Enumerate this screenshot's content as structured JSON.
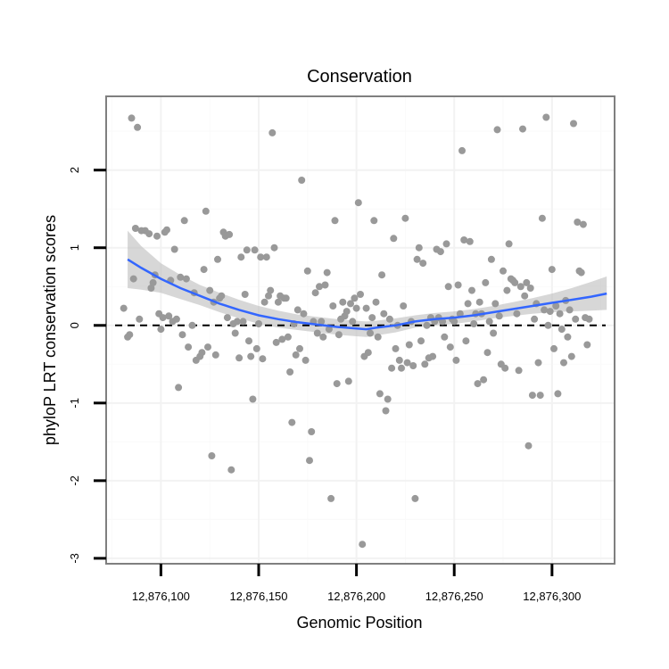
{
  "chart_data": {
    "type": "scatter",
    "title": "Conservation",
    "xlabel": "Genomic Position",
    "ylabel": "phyloP LRT conservation scores",
    "xlim": [
      12876072,
      12876332
    ],
    "ylim": [
      -3.07,
      2.95
    ],
    "x_ticks": [
      12876100,
      12876150,
      12876200,
      12876250,
      12876300
    ],
    "x_tick_labels": [
      "12,876,100",
      "12,876,150",
      "12,876,200",
      "12,876,250",
      "12,876,300"
    ],
    "y_ticks": [
      -3,
      -2,
      -1,
      0,
      1,
      2
    ],
    "y_tick_labels": [
      "-3",
      "-2",
      "-1",
      "0",
      "1",
      "2"
    ],
    "reference_line": 0,
    "colors": {
      "points": "#999999",
      "smooth_line": "#3366FF",
      "ribbon": "#BDBDBD",
      "panel_border": "#7F7F7F",
      "grid_major": "#F2F2F2",
      "grid_minor": "#FAFAFA"
    },
    "points": [
      [
        12876085,
        2.67
      ],
      [
        12876088,
        2.55
      ],
      [
        12876081,
        0.22
      ],
      [
        12876083,
        -0.15
      ],
      [
        12876084,
        -0.12
      ],
      [
        12876086,
        0.6
      ],
      [
        12876087,
        1.25
      ],
      [
        12876089,
        0.08
      ],
      [
        12876090,
        1.22
      ],
      [
        12876092,
        1.22
      ],
      [
        12876094,
        1.18
      ],
      [
        12876095,
        0.48
      ],
      [
        12876096,
        0.55
      ],
      [
        12876097,
        0.65
      ],
      [
        12876098,
        1.15
      ],
      [
        12876099,
        0.15
      ],
      [
        12876100,
        -0.05
      ],
      [
        12876101,
        0.1
      ],
      [
        12876102,
        1.2
      ],
      [
        12876103,
        1.23
      ],
      [
        12876104,
        0.12
      ],
      [
        12876105,
        0.58
      ],
      [
        12876106,
        0.05
      ],
      [
        12876107,
        0.98
      ],
      [
        12876108,
        0.08
      ],
      [
        12876109,
        -0.8
      ],
      [
        12876110,
        0.62
      ],
      [
        12876111,
        -0.12
      ],
      [
        12876112,
        1.35
      ],
      [
        12876113,
        0.6
      ],
      [
        12876114,
        -0.28
      ],
      [
        12876116,
        0.0
      ],
      [
        12876117,
        0.42
      ],
      [
        12876118,
        -0.45
      ],
      [
        12876120,
        -0.4
      ],
      [
        12876121,
        -0.35
      ],
      [
        12876122,
        0.72
      ],
      [
        12876123,
        1.47
      ],
      [
        12876124,
        -0.28
      ],
      [
        12876125,
        0.45
      ],
      [
        12876126,
        -1.68
      ],
      [
        12876127,
        0.3
      ],
      [
        12876128,
        -0.38
      ],
      [
        12876129,
        0.85
      ],
      [
        12876130,
        0.35
      ],
      [
        12876131,
        0.38
      ],
      [
        12876132,
        1.2
      ],
      [
        12876133,
        1.15
      ],
      [
        12876134,
        0.1
      ],
      [
        12876135,
        1.17
      ],
      [
        12876136,
        -1.86
      ],
      [
        12876137,
        0.02
      ],
      [
        12876138,
        -0.1
      ],
      [
        12876139,
        0.05
      ],
      [
        12876140,
        -0.42
      ],
      [
        12876141,
        0.88
      ],
      [
        12876142,
        0.05
      ],
      [
        12876143,
        0.4
      ],
      [
        12876144,
        0.97
      ],
      [
        12876145,
        -0.2
      ],
      [
        12876146,
        -0.4
      ],
      [
        12876147,
        -0.95
      ],
      [
        12876148,
        0.97
      ],
      [
        12876149,
        -0.3
      ],
      [
        12876150,
        0.02
      ],
      [
        12876151,
        0.88
      ],
      [
        12876152,
        -0.43
      ],
      [
        12876153,
        0.3
      ],
      [
        12876154,
        0.88
      ],
      [
        12876155,
        0.38
      ],
      [
        12876156,
        0.45
      ],
      [
        12876157,
        2.48
      ],
      [
        12876158,
        1.0
      ],
      [
        12876159,
        -0.22
      ],
      [
        12876160,
        0.3
      ],
      [
        12876161,
        0.38
      ],
      [
        12876162,
        -0.18
      ],
      [
        12876163,
        0.35
      ],
      [
        12876164,
        0.35
      ],
      [
        12876165,
        -0.15
      ],
      [
        12876166,
        -0.6
      ],
      [
        12876167,
        -1.25
      ],
      [
        12876168,
        0.02
      ],
      [
        12876169,
        -0.38
      ],
      [
        12876170,
        0.2
      ],
      [
        12876171,
        -0.3
      ],
      [
        12876172,
        1.87
      ],
      [
        12876173,
        0.15
      ],
      [
        12876174,
        -0.45
      ],
      [
        12876175,
        0.7
      ],
      [
        12876176,
        -1.74
      ],
      [
        12876177,
        -1.37
      ],
      [
        12876178,
        0.05
      ],
      [
        12876179,
        0.42
      ],
      [
        12876180,
        -0.1
      ],
      [
        12876181,
        0.5
      ],
      [
        12876182,
        0.05
      ],
      [
        12876183,
        -0.15
      ],
      [
        12876184,
        0.52
      ],
      [
        12876185,
        0.68
      ],
      [
        12876186,
        -0.05
      ],
      [
        12876187,
        -2.23
      ],
      [
        12876188,
        0.25
      ],
      [
        12876189,
        1.35
      ],
      [
        12876190,
        -0.75
      ],
      [
        12876191,
        -0.12
      ],
      [
        12876192,
        0.08
      ],
      [
        12876193,
        0.3
      ],
      [
        12876194,
        0.12
      ],
      [
        12876195,
        0.18
      ],
      [
        12876196,
        -0.72
      ],
      [
        12876197,
        0.28
      ],
      [
        12876198,
        0.05
      ],
      [
        12876199,
        0.35
      ],
      [
        12876200,
        0.22
      ],
      [
        12876201,
        1.58
      ],
      [
        12876202,
        0.4
      ],
      [
        12876203,
        -2.82
      ],
      [
        12876204,
        -0.4
      ],
      [
        12876205,
        0.22
      ],
      [
        12876206,
        -0.35
      ],
      [
        12876207,
        -0.1
      ],
      [
        12876208,
        0.1
      ],
      [
        12876209,
        1.35
      ],
      [
        12876210,
        0.3
      ],
      [
        12876211,
        -0.15
      ],
      [
        12876212,
        -0.88
      ],
      [
        12876213,
        0.65
      ],
      [
        12876214,
        0.15
      ],
      [
        12876215,
        -1.1
      ],
      [
        12876216,
        -0.95
      ],
      [
        12876217,
        0.08
      ],
      [
        12876218,
        -0.55
      ],
      [
        12876219,
        1.12
      ],
      [
        12876220,
        -0.3
      ],
      [
        12876221,
        0.0
      ],
      [
        12876222,
        -0.45
      ],
      [
        12876223,
        -0.55
      ],
      [
        12876224,
        0.25
      ],
      [
        12876225,
        1.38
      ],
      [
        12876226,
        -0.48
      ],
      [
        12876227,
        -0.25
      ],
      [
        12876228,
        0.05
      ],
      [
        12876229,
        -0.52
      ],
      [
        12876230,
        -2.23
      ],
      [
        12876231,
        0.85
      ],
      [
        12876232,
        1.0
      ],
      [
        12876233,
        -0.2
      ],
      [
        12876234,
        0.8
      ],
      [
        12876235,
        -0.5
      ],
      [
        12876236,
        0.0
      ],
      [
        12876237,
        -0.42
      ],
      [
        12876238,
        0.1
      ],
      [
        12876239,
        -0.4
      ],
      [
        12876240,
        0.05
      ],
      [
        12876241,
        0.98
      ],
      [
        12876242,
        0.1
      ],
      [
        12876243,
        0.95
      ],
      [
        12876244,
        0.05
      ],
      [
        12876245,
        -0.15
      ],
      [
        12876246,
        1.05
      ],
      [
        12876247,
        0.5
      ],
      [
        12876248,
        -0.28
      ],
      [
        12876249,
        0.08
      ],
      [
        12876250,
        0.05
      ],
      [
        12876251,
        -0.45
      ],
      [
        12876252,
        0.52
      ],
      [
        12876253,
        0.15
      ],
      [
        12876254,
        2.25
      ],
      [
        12876255,
        1.1
      ],
      [
        12876256,
        -0.2
      ],
      [
        12876257,
        0.28
      ],
      [
        12876258,
        1.08
      ],
      [
        12876259,
        0.45
      ],
      [
        12876260,
        0.02
      ],
      [
        12876261,
        0.15
      ],
      [
        12876262,
        -0.75
      ],
      [
        12876263,
        0.3
      ],
      [
        12876264,
        0.15
      ],
      [
        12876265,
        -0.7
      ],
      [
        12876266,
        0.55
      ],
      [
        12876267,
        -0.35
      ],
      [
        12876268,
        0.05
      ],
      [
        12876269,
        0.85
      ],
      [
        12876270,
        -0.1
      ],
      [
        12876271,
        0.28
      ],
      [
        12876272,
        2.52
      ],
      [
        12876273,
        0.12
      ],
      [
        12876274,
        -0.5
      ],
      [
        12876275,
        0.7
      ],
      [
        12876276,
        -0.55
      ],
      [
        12876277,
        0.45
      ],
      [
        12876278,
        1.05
      ],
      [
        12876279,
        0.6
      ],
      [
        12876280,
        0.58
      ],
      [
        12876281,
        0.55
      ],
      [
        12876282,
        0.15
      ],
      [
        12876283,
        -0.58
      ],
      [
        12876284,
        0.5
      ],
      [
        12876285,
        2.53
      ],
      [
        12876286,
        0.38
      ],
      [
        12876287,
        0.55
      ],
      [
        12876288,
        -1.55
      ],
      [
        12876289,
        0.48
      ],
      [
        12876290,
        -0.9
      ],
      [
        12876291,
        0.08
      ],
      [
        12876292,
        0.28
      ],
      [
        12876293,
        -0.48
      ],
      [
        12876294,
        -0.9
      ],
      [
        12876295,
        1.38
      ],
      [
        12876296,
        0.2
      ],
      [
        12876297,
        2.68
      ],
      [
        12876298,
        0.0
      ],
      [
        12876299,
        0.18
      ],
      [
        12876300,
        0.72
      ],
      [
        12876301,
        -0.3
      ],
      [
        12876302,
        0.25
      ],
      [
        12876303,
        -0.88
      ],
      [
        12876304,
        0.15
      ],
      [
        12876305,
        -0.05
      ],
      [
        12876306,
        -0.48
      ],
      [
        12876307,
        0.32
      ],
      [
        12876308,
        -0.15
      ],
      [
        12876309,
        0.2
      ],
      [
        12876310,
        -0.4
      ],
      [
        12876311,
        2.6
      ],
      [
        12876312,
        0.08
      ],
      [
        12876313,
        1.33
      ],
      [
        12876314,
        0.7
      ],
      [
        12876315,
        0.68
      ],
      [
        12876316,
        1.3
      ],
      [
        12876317,
        0.1
      ],
      [
        12876318,
        -0.25
      ],
      [
        12876319,
        0.08
      ]
    ],
    "smooth_curve": [
      [
        12876083,
        0.85
      ],
      [
        12876090,
        0.74
      ],
      [
        12876100,
        0.6
      ],
      [
        12876110,
        0.48
      ],
      [
        12876120,
        0.38
      ],
      [
        12876130,
        0.28
      ],
      [
        12876140,
        0.2
      ],
      [
        12876150,
        0.13
      ],
      [
        12876160,
        0.08
      ],
      [
        12876170,
        0.04
      ],
      [
        12876180,
        0.01
      ],
      [
        12876190,
        -0.02
      ],
      [
        12876200,
        -0.04
      ],
      [
        12876205,
        -0.05
      ],
      [
        12876210,
        -0.03
      ],
      [
        12876220,
        0.0
      ],
      [
        12876230,
        0.05
      ],
      [
        12876240,
        0.08
      ],
      [
        12876250,
        0.1
      ],
      [
        12876260,
        0.13
      ],
      [
        12876270,
        0.17
      ],
      [
        12876280,
        0.21
      ],
      [
        12876290,
        0.25
      ],
      [
        12876300,
        0.29
      ],
      [
        12876310,
        0.33
      ],
      [
        12876320,
        0.37
      ],
      [
        12876328,
        0.41
      ]
    ],
    "confidence_band": {
      "upper": [
        1.22,
        1.02,
        0.8,
        0.65,
        0.52,
        0.42,
        0.33,
        0.25,
        0.19,
        0.14,
        0.11,
        0.08,
        0.06,
        0.05,
        0.06,
        0.09,
        0.13,
        0.16,
        0.18,
        0.21,
        0.25,
        0.3,
        0.35,
        0.41,
        0.48,
        0.56,
        0.63
      ],
      "lower": [
        0.48,
        0.46,
        0.42,
        0.34,
        0.26,
        0.17,
        0.09,
        0.02,
        -0.03,
        -0.06,
        -0.09,
        -0.12,
        -0.14,
        -0.15,
        -0.13,
        -0.09,
        -0.03,
        0.0,
        0.02,
        0.05,
        0.09,
        0.12,
        0.15,
        0.17,
        0.18,
        0.19,
        0.2
      ]
    }
  }
}
